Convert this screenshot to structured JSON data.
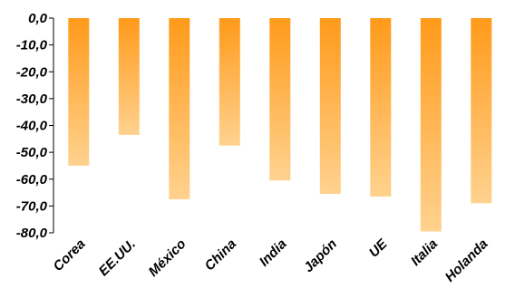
{
  "chart_data": {
    "type": "bar",
    "categories": [
      "Corea",
      "EE.UU.",
      "México",
      "China",
      "India",
      "Japón",
      "UE",
      "Italia",
      "Holanda"
    ],
    "values": [
      -55.0,
      -43.5,
      -67.5,
      -47.5,
      -60.5,
      -65.5,
      -66.5,
      -79.5,
      -69.0
    ],
    "ylim": [
      -80,
      0
    ],
    "yticks": [
      0,
      -10,
      -20,
      -30,
      -40,
      -50,
      -60,
      -70,
      -80
    ],
    "ytick_labels": [
      "0,0",
      "-10,0",
      "-20,0",
      "-30,0",
      "-40,0",
      "-50,0",
      "-60,0",
      "-70,0",
      "-80,0"
    ],
    "grid": false,
    "legend": "none",
    "colors": {
      "bar_top": "#ff9a1a",
      "bar_bottom": "#ffd28f",
      "axis": "#000000"
    }
  }
}
